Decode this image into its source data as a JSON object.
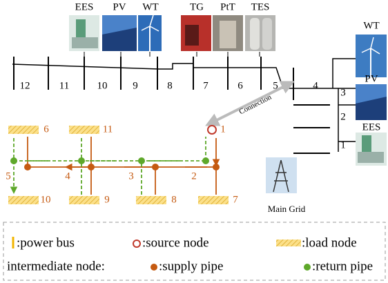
{
  "top_units": [
    "EES",
    "PV",
    "WT",
    "TG",
    "PtT",
    "TES"
  ],
  "right_units": [
    "WT",
    "PV",
    "EES"
  ],
  "buses": [
    "12",
    "11",
    "10",
    "9",
    "8",
    "7",
    "6",
    "5",
    "4",
    "3",
    "2",
    "1"
  ],
  "connection": "Connection",
  "main_grid": "Main Grid",
  "heat_nodes": {
    "loads": [
      "6",
      "11",
      "10",
      "9",
      "8",
      "7"
    ],
    "source": "1",
    "intermediate": [
      "5",
      "4",
      "3",
      "2"
    ]
  },
  "legend": {
    "power_bus": ":power bus",
    "source_node": ":source node",
    "load_node": ":load node",
    "intermediate": "intermediate node:",
    "supply_pipe": ":supply  pipe",
    "return_pipe": ":return pipe"
  }
}
